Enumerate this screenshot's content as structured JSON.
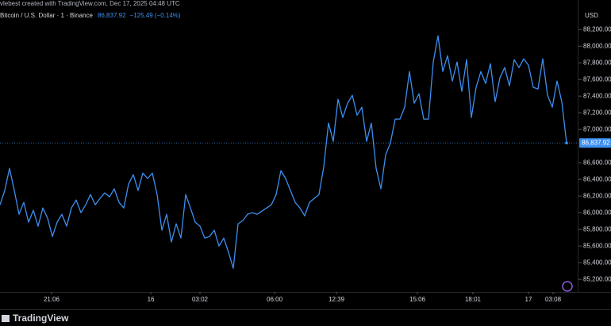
{
  "header": {
    "credit": "vlebest created with TradingView.com, Dec 17, 2025 04:48 UTC",
    "symbol": "Bitcoin / U.S. Dollar · 1 · Binance",
    "price": "86,837.92",
    "change": "−125.49 (−0.14%)"
  },
  "brand": "TradingView",
  "chart_data": {
    "type": "line",
    "currency": "USD",
    "color": "#3d8ff0",
    "last_price_label": "86,837.92",
    "values": [
      86095,
      86267,
      86533,
      86267,
      85981,
      86124,
      85886,
      86029,
      85838,
      86057,
      85933,
      85714,
      85886,
      85981,
      85838,
      86057,
      86152,
      86000,
      86095,
      86219,
      86095,
      86171,
      86238,
      86190,
      86286,
      86124,
      86057,
      86343,
      86457,
      86267,
      86476,
      86410,
      86476,
      86219,
      85790,
      85981,
      85648,
      85867,
      85695,
      86219,
      86057,
      85886,
      85838,
      85695,
      85714,
      85790,
      85600,
      85695,
      85524,
      85333,
      85867,
      85905,
      85981,
      86000,
      85981,
      86019,
      86057,
      86095,
      86219,
      86505,
      86410,
      86267,
      86124,
      86057,
      85962,
      86124,
      86171,
      86219,
      86552,
      87076,
      86857,
      87362,
      87143,
      87314,
      87410,
      87171,
      87267,
      86857,
      87076,
      86533,
      86286,
      86695,
      86838,
      87124,
      87124,
      87267,
      87695,
      87314,
      87429,
      87124,
      87124,
      87810,
      88124,
      87695,
      87886,
      87581,
      87810,
      87457,
      87838,
      87143,
      87505,
      87695,
      87552,
      87790,
      87333,
      87619,
      87743,
      87524,
      87838,
      87743,
      87848,
      87771,
      87505,
      87486,
      87848,
      87410,
      87267,
      87581,
      87333,
      86837.92
    ],
    "xlim": [
      0,
      119
    ],
    "xticks": [
      {
        "value": 10.83,
        "label": "21:06"
      },
      {
        "value": 31.67,
        "label": "16"
      },
      {
        "value": 42,
        "label": "03:02"
      },
      {
        "value": 57.67,
        "label": "06:00"
      },
      {
        "value": 70.67,
        "label": "12:39"
      },
      {
        "value": 87.67,
        "label": "15:06"
      },
      {
        "value": 99.33,
        "label": "18:01"
      },
      {
        "value": 111,
        "label": "17"
      },
      {
        "value": 116.17,
        "label": "03:08"
      }
    ],
    "ylim": [
      85030,
      88440
    ],
    "yticks": [
      {
        "value": 85200,
        "label": "85,200.00"
      },
      {
        "value": 85400,
        "label": "85,400.00"
      },
      {
        "value": 85600,
        "label": "85,600.00"
      },
      {
        "value": 85800,
        "label": "85,800.00"
      },
      {
        "value": 86000,
        "label": "86,000.00"
      },
      {
        "value": 86200,
        "label": "86,200.00"
      },
      {
        "value": 86400,
        "label": "86,400.00"
      },
      {
        "value": 86600,
        "label": "86,600.00"
      },
      {
        "value": 87000,
        "label": "87,000.00"
      },
      {
        "value": 87200,
        "label": "87,200.00"
      },
      {
        "value": 87400,
        "label": "87,400.00"
      },
      {
        "value": 87600,
        "label": "87,600.00"
      },
      {
        "value": 87800,
        "label": "87,800.00"
      },
      {
        "value": 88000,
        "label": "88,000.00"
      },
      {
        "value": 88200,
        "label": "88,200.00"
      }
    ]
  }
}
